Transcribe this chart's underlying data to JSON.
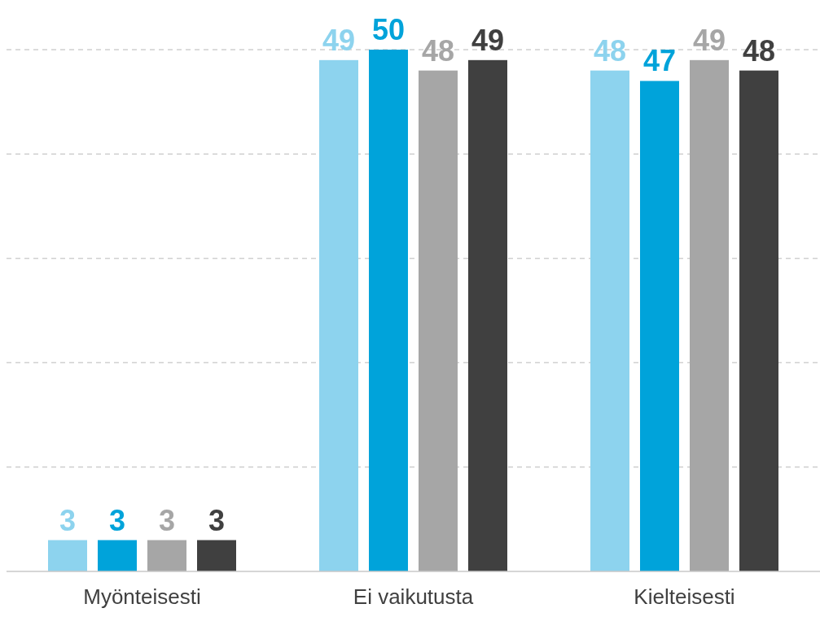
{
  "chart_data": {
    "type": "bar",
    "categories": [
      "Myönteisesti",
      "Ei vaikutusta",
      "Kielteisesti"
    ],
    "series": [
      {
        "color": "#8dd3ee",
        "values": [
          3,
          49,
          48
        ]
      },
      {
        "color": "#00a3da",
        "values": [
          3,
          50,
          47
        ]
      },
      {
        "color": "#a6a6a6",
        "values": [
          3,
          48,
          49
        ]
      },
      {
        "color": "#404040",
        "values": [
          3,
          49,
          48
        ]
      }
    ],
    "ylim": [
      0,
      50
    ],
    "yticks": [
      {
        "value": 0,
        "label": null
      },
      {
        "value": 10,
        "label": null
      },
      {
        "value": 20,
        "label": null
      },
      {
        "value": 30,
        "label": null
      },
      {
        "value": 40,
        "label": null
      },
      {
        "value": 50,
        "label": null
      }
    ],
    "grid": "y",
    "tick_labels": "x",
    "data_labels": true
  }
}
